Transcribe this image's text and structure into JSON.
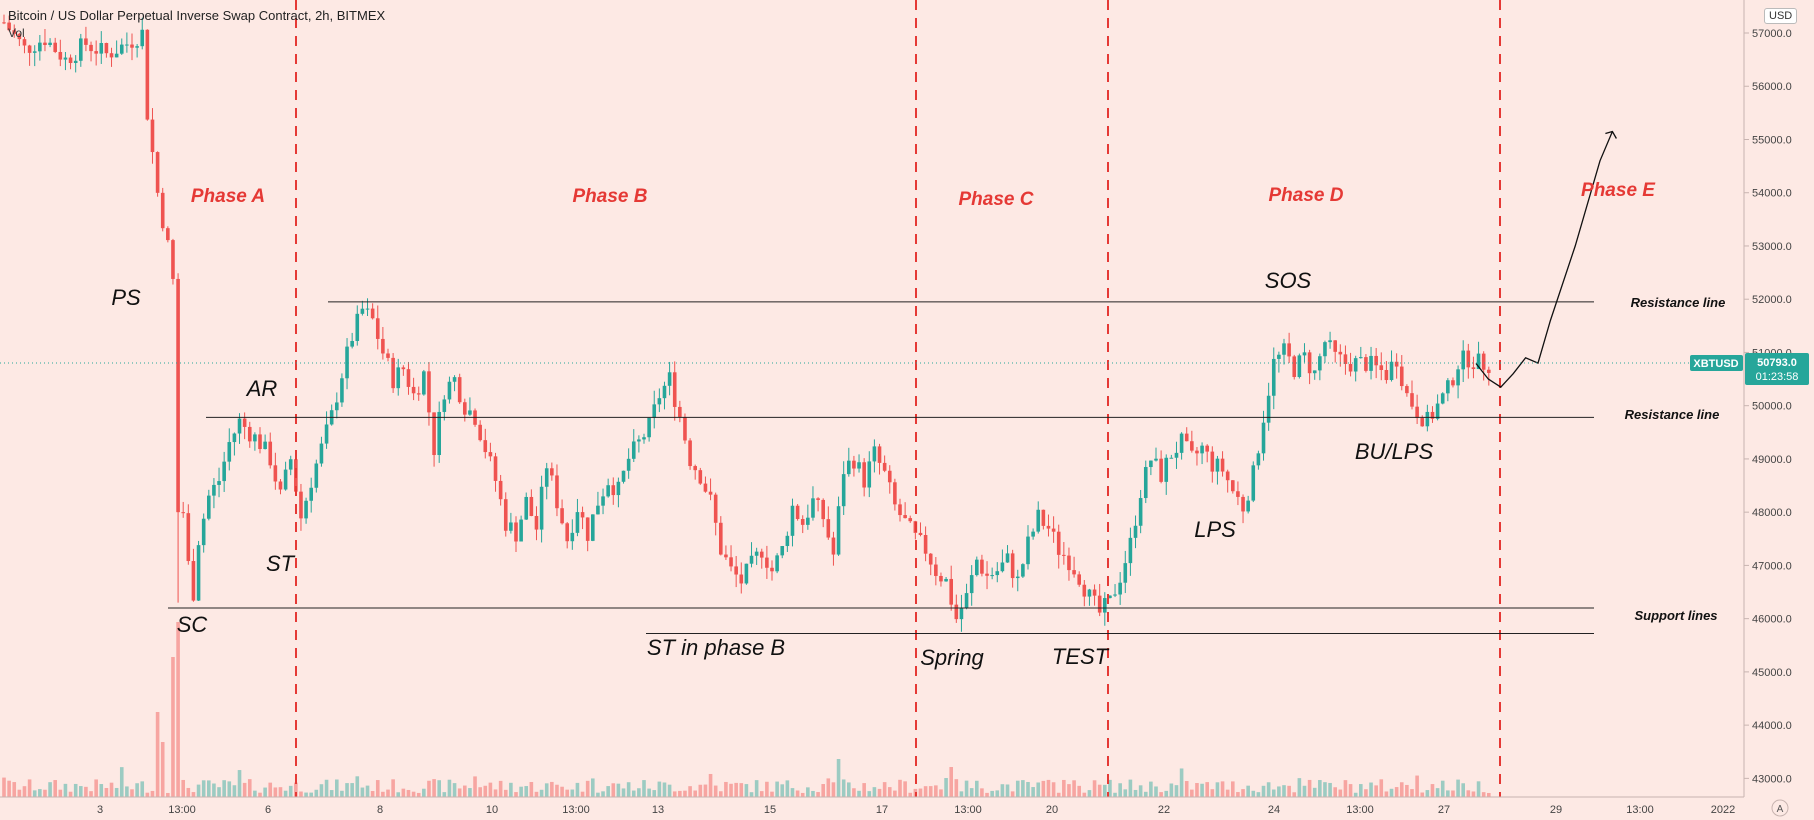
{
  "header": {
    "title": "Bitcoin / US Dollar Perpetual Inverse Swap Contract, 2h, BITMEX",
    "indicator": "Vol",
    "currency": "USD",
    "auto_label": "A"
  },
  "price_tag": {
    "symbol": "XBTUSD",
    "price": "50793.0",
    "countdown": "01:23:58",
    "color": "#26a69a"
  },
  "colors": {
    "up": "#26a69a",
    "down": "#ef5350",
    "phase_text": "#e53935",
    "phase_line": "#e53935",
    "background": "#fde9e4"
  },
  "chart_data": {
    "type": "candlestick",
    "y_axis": {
      "range": [
        42650,
        57620
      ],
      "ticks": [
        "43000.0",
        "44000.0",
        "45000.0",
        "46000.0",
        "47000.0",
        "48000.0",
        "49000.0",
        "50000.0",
        "51000.0",
        "52000.0",
        "53000.0",
        "54000.0",
        "55000.0",
        "56000.0",
        "57000.0"
      ]
    },
    "x_axis": {
      "labels": [
        "3",
        "13:00",
        "6",
        "8",
        "10",
        "13:00",
        "13",
        "15",
        "17",
        "13:00",
        "20",
        "22",
        "24",
        "13:00",
        "27",
        "29",
        "13:00",
        "2022"
      ]
    },
    "phases": [
      "Phase A",
      "Phase B",
      "Phase C",
      "Phase D",
      "Phase E"
    ],
    "horizontal_lines": [
      {
        "label": "Resistance line",
        "price": 51950
      },
      {
        "label": "Resistance line",
        "price": 49780
      },
      {
        "label": "Support lines",
        "price": 46200
      },
      {
        "label": "",
        "price": 45720
      }
    ],
    "events": [
      "PS",
      "SC",
      "AR",
      "ST",
      "ST in phase B",
      "Spring",
      "TEST",
      "LPS",
      "SOS",
      "BU/LPS"
    ],
    "current_price": 50793.0,
    "price_path": [
      [
        0,
        57200
      ],
      [
        4,
        56700
      ],
      [
        8,
        56900
      ],
      [
        12,
        56500
      ],
      [
        16,
        56800
      ],
      [
        20,
        56600
      ],
      [
        24,
        56800
      ],
      [
        27,
        57000
      ],
      [
        28,
        55500
      ],
      [
        30,
        54000
      ],
      [
        32,
        53000
      ],
      [
        33.5,
        52000
      ],
      [
        34.5,
        51200
      ],
      [
        35,
        48000
      ],
      [
        36,
        47000
      ],
      [
        37,
        46500
      ],
      [
        38,
        47500
      ],
      [
        40,
        48300
      ],
      [
        42,
        48600
      ],
      [
        44,
        49300
      ],
      [
        46,
        49700
      ],
      [
        48,
        49500
      ],
      [
        50,
        49300
      ],
      [
        52,
        49000
      ],
      [
        54,
        48300
      ],
      [
        56,
        49000
      ],
      [
        58,
        47900
      ],
      [
        60,
        48600
      ],
      [
        62,
        49200
      ],
      [
        64,
        49800
      ],
      [
        66,
        50600
      ],
      [
        68,
        51300
      ],
      [
        70,
        51800
      ],
      [
        72,
        51600
      ],
      [
        74,
        51000
      ],
      [
        76,
        50500
      ],
      [
        78,
        50700
      ],
      [
        80,
        50200
      ],
      [
        82,
        50600
      ],
      [
        84,
        49200
      ],
      [
        86,
        50300
      ],
      [
        88,
        50500
      ],
      [
        90,
        50000
      ],
      [
        92,
        49800
      ],
      [
        94,
        49200
      ],
      [
        96,
        48600
      ],
      [
        98,
        47800
      ],
      [
        100,
        47600
      ],
      [
        102,
        48200
      ],
      [
        104,
        47700
      ],
      [
        106,
        48900
      ],
      [
        108,
        48200
      ],
      [
        110,
        47500
      ],
      [
        112,
        48100
      ],
      [
        114,
        47600
      ],
      [
        116,
        48200
      ],
      [
        118,
        48600
      ],
      [
        120,
        48400
      ],
      [
        122,
        49000
      ],
      [
        124,
        49300
      ],
      [
        126,
        49600
      ],
      [
        128,
        50200
      ],
      [
        130,
        50500
      ],
      [
        132,
        49800
      ],
      [
        134,
        49000
      ],
      [
        136,
        48700
      ],
      [
        138,
        48200
      ],
      [
        140,
        47300
      ],
      [
        142,
        46900
      ],
      [
        144,
        46700
      ],
      [
        146,
        47000
      ],
      [
        148,
        47300
      ],
      [
        150,
        46900
      ],
      [
        152,
        47300
      ],
      [
        154,
        48100
      ],
      [
        156,
        47800
      ],
      [
        158,
        48200
      ],
      [
        160,
        47900
      ],
      [
        162,
        47200
      ],
      [
        164,
        48800
      ],
      [
        166,
        49000
      ],
      [
        168,
        48600
      ],
      [
        170,
        49100
      ],
      [
        172,
        48700
      ],
      [
        174,
        48100
      ],
      [
        176,
        47800
      ],
      [
        178,
        47500
      ],
      [
        180,
        47300
      ],
      [
        182,
        46900
      ],
      [
        184,
        46700
      ],
      [
        186,
        46000
      ],
      [
        188,
        46400
      ],
      [
        190,
        47100
      ],
      [
        192,
        46800
      ],
      [
        194,
        46900
      ],
      [
        196,
        47100
      ],
      [
        198,
        46700
      ],
      [
        200,
        47400
      ],
      [
        202,
        47900
      ],
      [
        204,
        47700
      ],
      [
        206,
        47300
      ],
      [
        208,
        47100
      ],
      [
        210,
        46800
      ],
      [
        212,
        46400
      ],
      [
        214,
        46100
      ],
      [
        216,
        46300
      ],
      [
        218,
        46800
      ],
      [
        220,
        47400
      ],
      [
        222,
        48400
      ],
      [
        224,
        49000
      ],
      [
        226,
        48700
      ],
      [
        228,
        49100
      ],
      [
        230,
        49300
      ],
      [
        232,
        49000
      ],
      [
        234,
        49200
      ],
      [
        236,
        48900
      ],
      [
        238,
        48800
      ],
      [
        240,
        48400
      ],
      [
        242,
        48100
      ],
      [
        244,
        48700
      ],
      [
        246,
        49800
      ],
      [
        248,
        50800
      ],
      [
        250,
        51000
      ],
      [
        252,
        50700
      ],
      [
        254,
        50900
      ],
      [
        256,
        50600
      ],
      [
        258,
        51200
      ],
      [
        260,
        50900
      ],
      [
        262,
        50800
      ],
      [
        264,
        50800
      ],
      [
        266,
        50800
      ],
      [
        268,
        50700
      ],
      [
        270,
        50600
      ],
      [
        272,
        50900
      ],
      [
        274,
        50200
      ],
      [
        276,
        49900
      ],
      [
        278,
        49700
      ],
      [
        280,
        50000
      ],
      [
        282,
        50300
      ],
      [
        284,
        50800
      ],
      [
        286,
        50900
      ],
      [
        288,
        50800
      ],
      [
        290,
        50793
      ]
    ],
    "projection": [
      [
        0,
        50793
      ],
      [
        1,
        50500
      ],
      [
        2,
        50350
      ],
      [
        3,
        50600
      ],
      [
        4,
        50900
      ],
      [
        5,
        50800
      ],
      [
        6,
        51600
      ],
      [
        8,
        53000
      ],
      [
        10,
        54600
      ],
      [
        11,
        55150
      ]
    ],
    "volume_max_relative": 1
  },
  "labels_text": {
    "events": {
      "PS": "PS",
      "SC": "SC",
      "AR": "AR",
      "ST": "ST",
      "STB": "ST in phase B",
      "SPRING": "Spring",
      "TEST": "TEST",
      "LPS": "LPS",
      "SOS": "SOS",
      "BULPS": "BU/LPS"
    },
    "lines": {
      "res1": "Resistance line",
      "res2": "Resistance line",
      "sup": "Support lines"
    }
  }
}
